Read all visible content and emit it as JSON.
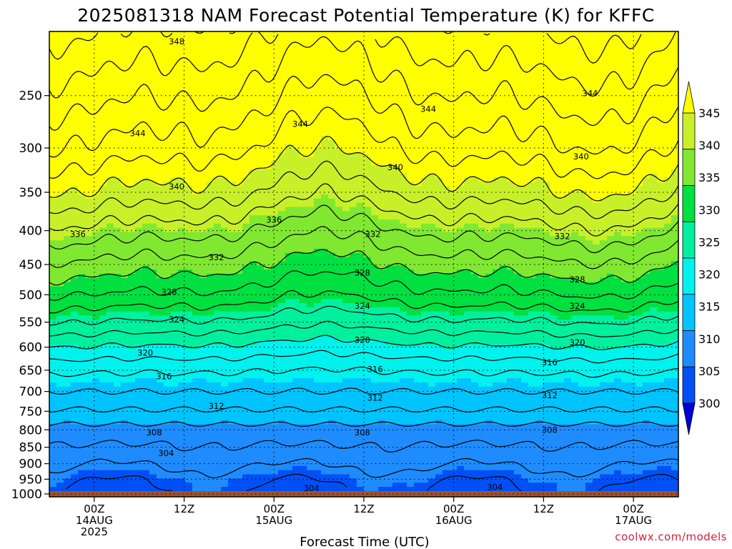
{
  "title": "2025081318 NAM Forecast Potential Temperature (K) for KFFC",
  "credit": "coolwx.com/models",
  "colors": {
    "ground": "#a0522d",
    "bands": [
      "#0000d6",
      "#0050f5",
      "#1e8cff",
      "#00c4ff",
      "#00f2ee",
      "#00f0a0",
      "#00e040",
      "#80e830",
      "#c8f028",
      "#ffff00"
    ]
  },
  "chart_data": {
    "type": "heatmap",
    "title": "2025081318 NAM Forecast Potential Temperature (K) for KFFC",
    "xlabel": "Forecast Time (UTC)",
    "ylabel": "",
    "y_scale": "log-pressure (hPa), inverted",
    "ylim": [
      1010,
      200
    ],
    "y_ticks": [
      250,
      300,
      350,
      400,
      450,
      500,
      550,
      600,
      650,
      700,
      750,
      800,
      850,
      900,
      950,
      1000
    ],
    "x_ticks": [
      {
        "hour": 6,
        "line1": "00Z",
        "line2": "14AUG",
        "line3": "2025"
      },
      {
        "hour": 18,
        "line1": "12Z",
        "line2": "",
        "line3": ""
      },
      {
        "hour": 30,
        "line1": "00Z",
        "line2": "15AUG",
        "line3": ""
      },
      {
        "hour": 42,
        "line1": "12Z",
        "line2": "",
        "line3": ""
      },
      {
        "hour": 54,
        "line1": "00Z",
        "line2": "16AUG",
        "line3": ""
      },
      {
        "hour": 66,
        "line1": "12Z",
        "line2": "",
        "line3": ""
      },
      {
        "hour": 78,
        "line1": "00Z",
        "line2": "17AUG",
        "line3": ""
      }
    ],
    "xlim": [
      0,
      84
    ],
    "grid": true,
    "colorbar": {
      "ticks": [
        345,
        340,
        335,
        330,
        325,
        320,
        315,
        310,
        305,
        300
      ],
      "min": 300,
      "max": 345,
      "extend": "both",
      "placement": "right"
    },
    "contour_labels": [
      {
        "value": "348",
        "hour": 17,
        "p": 207
      },
      {
        "value": "344",
        "hour": 11.8,
        "p": 285
      },
      {
        "value": "344",
        "hour": 33.5,
        "p": 276
      },
      {
        "value": "344",
        "hour": 50.6,
        "p": 262
      },
      {
        "value": "344",
        "hour": 72.2,
        "p": 248
      },
      {
        "value": "340",
        "hour": 17,
        "p": 343
      },
      {
        "value": "340",
        "hour": 46.2,
        "p": 321
      },
      {
        "value": "340",
        "hour": 71,
        "p": 309
      },
      {
        "value": "336",
        "hour": 3.8,
        "p": 405
      },
      {
        "value": "336",
        "hour": 30,
        "p": 385
      },
      {
        "value": "332",
        "hour": 22.3,
        "p": 439
      },
      {
        "value": "332",
        "hour": 43.2,
        "p": 405
      },
      {
        "value": "332",
        "hour": 68.5,
        "p": 408
      },
      {
        "value": "328",
        "hour": 16,
        "p": 495
      },
      {
        "value": "328",
        "hour": 41.8,
        "p": 463
      },
      {
        "value": "328",
        "hour": 70.5,
        "p": 474
      },
      {
        "value": "324",
        "hour": 17,
        "p": 545
      },
      {
        "value": "324",
        "hour": 41.8,
        "p": 520
      },
      {
        "value": "324",
        "hour": 70.5,
        "p": 520
      },
      {
        "value": "320",
        "hour": 12.8,
        "p": 612
      },
      {
        "value": "320",
        "hour": 41.8,
        "p": 585
      },
      {
        "value": "320",
        "hour": 70.5,
        "p": 590
      },
      {
        "value": "316",
        "hour": 15.3,
        "p": 664
      },
      {
        "value": "316",
        "hour": 43.5,
        "p": 648
      },
      {
        "value": "316",
        "hour": 66.8,
        "p": 633
      },
      {
        "value": "312",
        "hour": 22.3,
        "p": 736
      },
      {
        "value": "312",
        "hour": 43.5,
        "p": 716
      },
      {
        "value": "312",
        "hour": 66.8,
        "p": 709
      },
      {
        "value": "308",
        "hour": 14,
        "p": 807
      },
      {
        "value": "308",
        "hour": 41.8,
        "p": 807
      },
      {
        "value": "308",
        "hour": 66.8,
        "p": 800
      },
      {
        "value": "304",
        "hour": 15.6,
        "p": 868
      },
      {
        "value": "304",
        "hour": 35,
        "p": 980
      },
      {
        "value": "304",
        "hour": 59.5,
        "p": 977
      }
    ],
    "values_note": "approximate field; surface ~990 hPa"
  }
}
